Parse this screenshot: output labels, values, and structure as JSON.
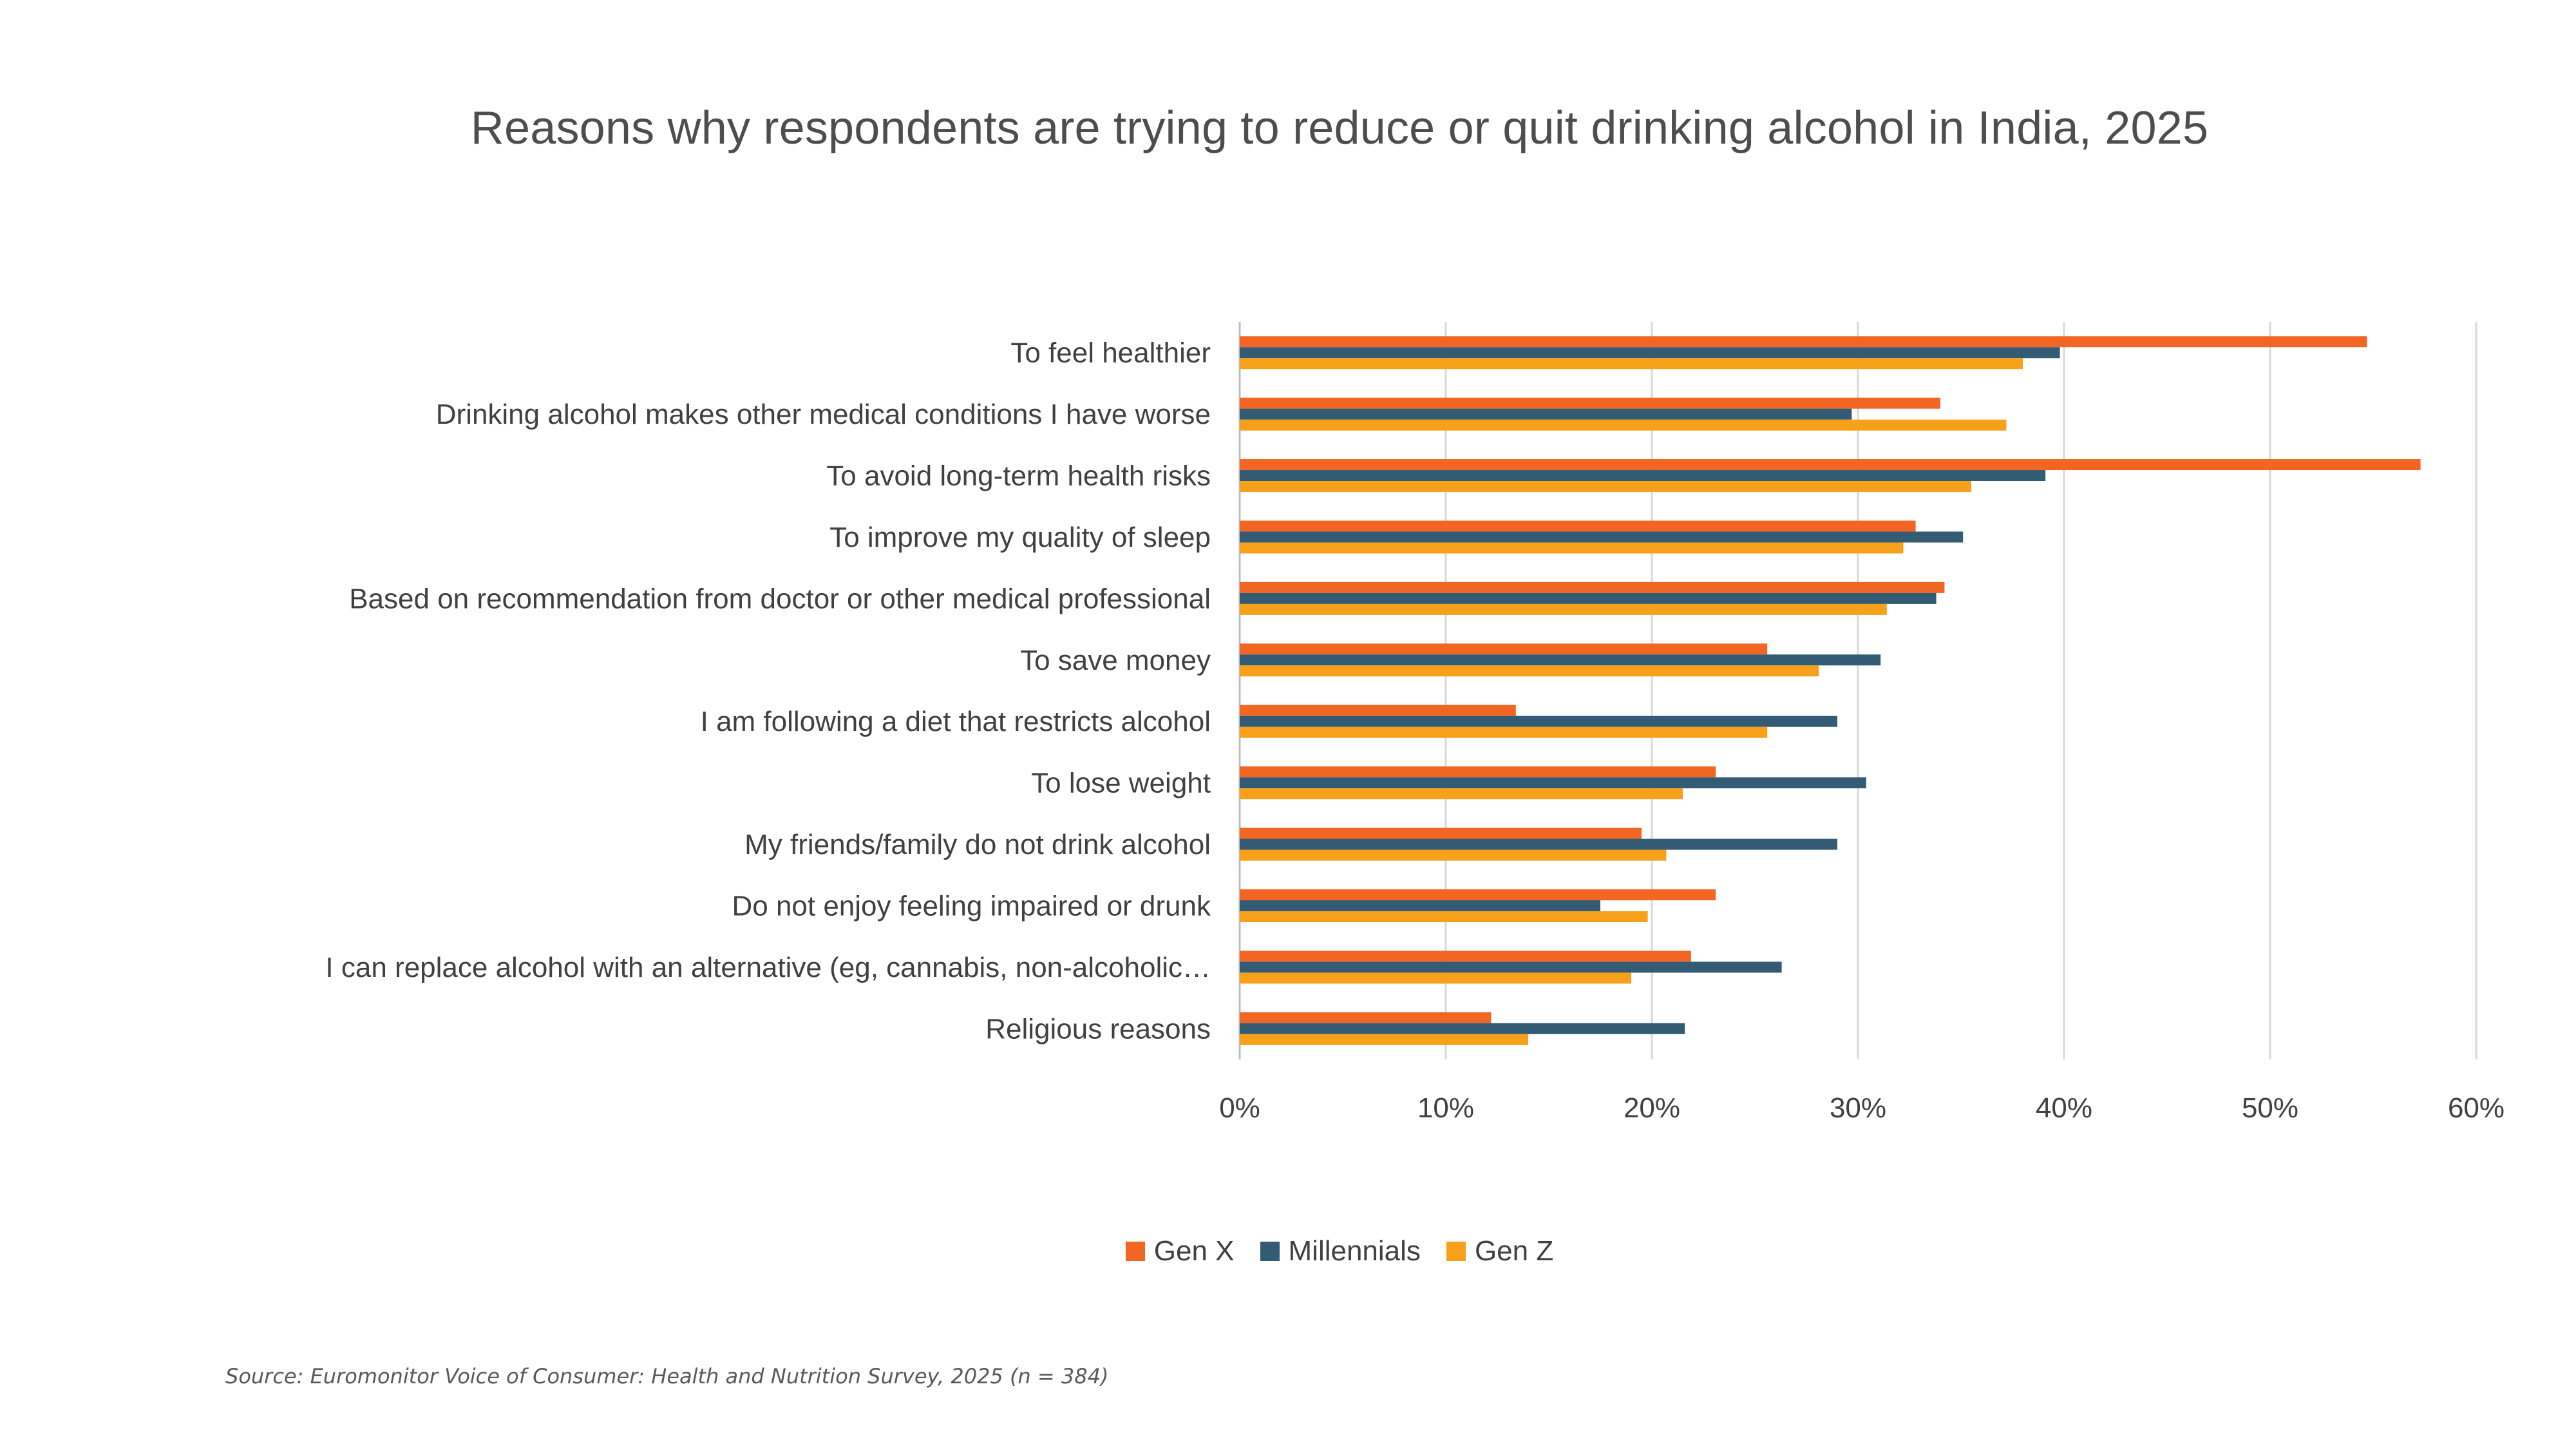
{
  "chart_data": {
    "type": "bar",
    "orientation": "horizontal",
    "title": "Reasons why respondents are trying to reduce or quit drinking alcohol in India, 2025",
    "categories": [
      "To feel healthier",
      "Drinking alcohol makes other medical conditions I have worse",
      "To avoid long-term health risks",
      "To improve my quality of sleep",
      "Based on recommendation from doctor or other medical professional",
      "To save money",
      "I am following a diet that restricts alcohol",
      "To lose weight",
      "My friends/family do not drink alcohol",
      "Do not enjoy feeling impaired or drunk",
      "I can replace alcohol with an alternative (eg, cannabis, non-alcoholic…",
      "Religious reasons"
    ],
    "series": [
      {
        "name": "Gen X",
        "color": "#F26522",
        "values": [
          54.7,
          34.0,
          57.3,
          32.8,
          34.2,
          25.6,
          13.4,
          23.1,
          19.5,
          23.1,
          21.9,
          12.2
        ]
      },
      {
        "name": "Millennials",
        "color": "#335B74",
        "values": [
          39.8,
          29.7,
          39.1,
          35.1,
          33.8,
          31.1,
          29.0,
          30.4,
          29.0,
          17.5,
          26.3,
          21.6
        ]
      },
      {
        "name": "Gen Z",
        "color": "#F7A11A",
        "values": [
          38.0,
          37.2,
          35.5,
          32.2,
          31.4,
          28.1,
          25.6,
          21.5,
          20.7,
          19.8,
          19.0,
          14.0
        ]
      }
    ],
    "xlim": [
      0,
      60
    ],
    "xticks": [
      0,
      10,
      20,
      30,
      40,
      50,
      60
    ],
    "tick_labels": [
      "0%",
      "10%",
      "20%",
      "30%",
      "40%",
      "50%",
      "60%"
    ],
    "xlabel": "",
    "ylabel": "",
    "grid": "vertical",
    "legend_position": "bottom-center"
  },
  "source_note": "Source: Euromonitor Voice of Consumer: Health and Nutrition Survey, 2025 (n = 384)"
}
